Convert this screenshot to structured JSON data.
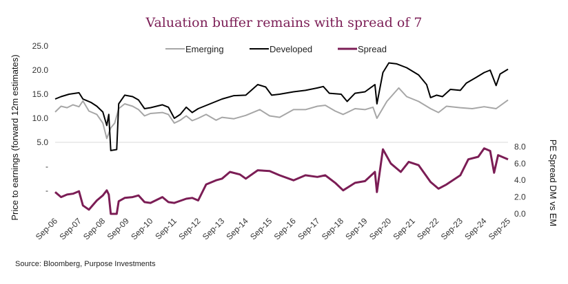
{
  "chart_data": {
    "type": "line",
    "title": "Valuation buffer remains with spread of 7",
    "source": "Source: Bloomberg, Purpose Investments",
    "ylabel_left": "Price to earnings (forward 12m estimates)",
    "ylabel_right": "PE Spread DM vs EM",
    "left_ticks": [
      "25.0",
      "20.0",
      "15.0",
      "10.0",
      "5.0",
      "-",
      "-"
    ],
    "left_tick_values": [
      25,
      20,
      15,
      10,
      5,
      0,
      -5
    ],
    "right_ticks": [
      "8.0",
      "6.0",
      "4.0",
      "2.0",
      "0.0"
    ],
    "right_tick_values": [
      8,
      6,
      4,
      2,
      0
    ],
    "x_ticks": [
      "Sep-06",
      "Sep-07",
      "Sep-08",
      "Sep-09",
      "Sep-10",
      "Sep-11",
      "Sep-12",
      "Sep-13",
      "Sep-14",
      "Sep-15",
      "Sep-16",
      "Sep-17",
      "Sep-18",
      "Sep-19",
      "Sep-20",
      "Sep-21",
      "Sep-22",
      "Sep-23",
      "Sep-24",
      "Sep-25"
    ],
    "xlim": [
      "2006-09",
      "2025-09"
    ],
    "ylim_left": [
      -10,
      25
    ],
    "ylim_right": [
      0,
      8
    ],
    "grid": "single horizontal line at 5.0",
    "legend_position": "top",
    "colors": {
      "Emerging": "#a6a6a6",
      "Developed": "#000000",
      "Spread": "#7b1d55"
    },
    "series": [
      {
        "name": "Emerging",
        "axis": "left",
        "points": [
          [
            "2006-09",
            11.3
          ],
          [
            "2006-12",
            12.5
          ],
          [
            "2007-03",
            12.2
          ],
          [
            "2007-06",
            12.8
          ],
          [
            "2007-09",
            12.4
          ],
          [
            "2007-11",
            13.6
          ],
          [
            "2008-02",
            11.5
          ],
          [
            "2008-06",
            10.8
          ],
          [
            "2008-09",
            9
          ],
          [
            "2008-11",
            5.8
          ],
          [
            "2009-01",
            8
          ],
          [
            "2009-03",
            9
          ],
          [
            "2009-05",
            12
          ],
          [
            "2009-08",
            13
          ],
          [
            "2009-12",
            12.5
          ],
          [
            "2010-03",
            11.8
          ],
          [
            "2010-06",
            10.5
          ],
          [
            "2010-09",
            11
          ],
          [
            "2011-03",
            11.2
          ],
          [
            "2011-06",
            10.8
          ],
          [
            "2011-09",
            9
          ],
          [
            "2011-12",
            9.6
          ],
          [
            "2012-03",
            10.5
          ],
          [
            "2012-06",
            9.5
          ],
          [
            "2012-09",
            10
          ],
          [
            "2013-01",
            10.8
          ],
          [
            "2013-06",
            9.6
          ],
          [
            "2013-09",
            10.2
          ],
          [
            "2014-03",
            9.9
          ],
          [
            "2014-09",
            10.6
          ],
          [
            "2015-04",
            11.8
          ],
          [
            "2015-09",
            10.5
          ],
          [
            "2016-02",
            10.2
          ],
          [
            "2016-09",
            11.8
          ],
          [
            "2017-03",
            11.8
          ],
          [
            "2017-09",
            12.5
          ],
          [
            "2018-01",
            12.7
          ],
          [
            "2018-06",
            11.5
          ],
          [
            "2018-10",
            10.8
          ],
          [
            "2019-04",
            12
          ],
          [
            "2019-09",
            11.8
          ],
          [
            "2020-01",
            12.3
          ],
          [
            "2020-03",
            10
          ],
          [
            "2020-08",
            13.5
          ],
          [
            "2021-02",
            16.3
          ],
          [
            "2021-06",
            14.5
          ],
          [
            "2021-12",
            13.5
          ],
          [
            "2022-06",
            12
          ],
          [
            "2022-10",
            11.2
          ],
          [
            "2023-02",
            12.5
          ],
          [
            "2023-09",
            12.2
          ],
          [
            "2024-03",
            12
          ],
          [
            "2024-09",
            12.4
          ],
          [
            "2025-03",
            12
          ],
          [
            "2025-09",
            13.8
          ]
        ]
      },
      {
        "name": "Developed",
        "axis": "left",
        "points": [
          [
            "2006-09",
            14
          ],
          [
            "2006-12",
            14.5
          ],
          [
            "2007-04",
            15
          ],
          [
            "2007-09",
            15.3
          ],
          [
            "2007-11",
            14
          ],
          [
            "2008-03",
            13.3
          ],
          [
            "2008-06",
            12.5
          ],
          [
            "2008-09",
            11.3
          ],
          [
            "2008-11",
            8.5
          ],
          [
            "2008-12",
            10.8
          ],
          [
            "2009-01",
            3.3
          ],
          [
            "2009-04",
            3.5
          ],
          [
            "2009-05",
            13
          ],
          [
            "2009-08",
            14.8
          ],
          [
            "2009-12",
            14.5
          ],
          [
            "2010-03",
            13.8
          ],
          [
            "2010-06",
            12
          ],
          [
            "2010-09",
            12.2
          ],
          [
            "2011-03",
            12.8
          ],
          [
            "2011-06",
            12.3
          ],
          [
            "2011-09",
            10
          ],
          [
            "2011-12",
            10.8
          ],
          [
            "2012-03",
            12.3
          ],
          [
            "2012-06",
            11.2
          ],
          [
            "2012-09",
            12
          ],
          [
            "2013-03",
            13
          ],
          [
            "2013-09",
            14
          ],
          [
            "2014-03",
            14.7
          ],
          [
            "2014-09",
            14.8
          ],
          [
            "2015-03",
            17
          ],
          [
            "2015-07",
            16.5
          ],
          [
            "2015-10",
            14.8
          ],
          [
            "2016-02",
            15
          ],
          [
            "2016-09",
            15.5
          ],
          [
            "2017-03",
            15.8
          ],
          [
            "2017-09",
            16.3
          ],
          [
            "2017-12",
            16.6
          ],
          [
            "2018-03",
            15.2
          ],
          [
            "2018-09",
            15
          ],
          [
            "2018-12",
            13.5
          ],
          [
            "2019-04",
            15.2
          ],
          [
            "2019-09",
            15.5
          ],
          [
            "2020-02",
            17
          ],
          [
            "2020-03",
            13
          ],
          [
            "2020-06",
            19.5
          ],
          [
            "2020-09",
            21.5
          ],
          [
            "2021-01",
            21.3
          ],
          [
            "2021-06",
            20.5
          ],
          [
            "2021-12",
            19
          ],
          [
            "2022-04",
            17
          ],
          [
            "2022-06",
            14.3
          ],
          [
            "2022-09",
            14.8
          ],
          [
            "2022-12",
            14.5
          ],
          [
            "2023-04",
            16
          ],
          [
            "2023-09",
            15.8
          ],
          [
            "2023-12",
            17.3
          ],
          [
            "2024-05",
            18.5
          ],
          [
            "2024-09",
            19.5
          ],
          [
            "2024-12",
            20
          ],
          [
            "2025-03",
            16.8
          ],
          [
            "2025-05",
            19.2
          ],
          [
            "2025-09",
            20.2
          ]
        ]
      },
      {
        "name": "Spread",
        "axis": "right",
        "points": [
          [
            "2006-09",
            2.6
          ],
          [
            "2006-12",
            2
          ],
          [
            "2007-03",
            2.3
          ],
          [
            "2007-06",
            2.4
          ],
          [
            "2007-09",
            2.7
          ],
          [
            "2007-11",
            1
          ],
          [
            "2008-02",
            0.5
          ],
          [
            "2008-06",
            1.6
          ],
          [
            "2008-09",
            2.2
          ],
          [
            "2008-11",
            2.8
          ],
          [
            "2008-12",
            2.3
          ],
          [
            "2009-01",
            0
          ],
          [
            "2009-04",
            0
          ],
          [
            "2009-05",
            1.5
          ],
          [
            "2009-08",
            1.9
          ],
          [
            "2009-12",
            2
          ],
          [
            "2010-03",
            2.2
          ],
          [
            "2010-06",
            1.4
          ],
          [
            "2010-09",
            1.3
          ],
          [
            "2011-03",
            2
          ],
          [
            "2011-06",
            1.4
          ],
          [
            "2011-09",
            1.3
          ],
          [
            "2012-03",
            1.8
          ],
          [
            "2012-06",
            1.9
          ],
          [
            "2012-09",
            1.6
          ],
          [
            "2013-01",
            3.5
          ],
          [
            "2013-06",
            4
          ],
          [
            "2013-09",
            4.2
          ],
          [
            "2014-01",
            5
          ],
          [
            "2014-06",
            4.7
          ],
          [
            "2014-09",
            4.2
          ],
          [
            "2015-03",
            5.2
          ],
          [
            "2015-09",
            5.1
          ],
          [
            "2016-02",
            4.6
          ],
          [
            "2016-09",
            4
          ],
          [
            "2017-03",
            4.6
          ],
          [
            "2017-09",
            4.4
          ],
          [
            "2018-01",
            4.6
          ],
          [
            "2018-06",
            3.7
          ],
          [
            "2018-10",
            2.8
          ],
          [
            "2019-04",
            3.7
          ],
          [
            "2019-09",
            3.9
          ],
          [
            "2020-02",
            5
          ],
          [
            "2020-03",
            2.6
          ],
          [
            "2020-06",
            7.7
          ],
          [
            "2020-10",
            6
          ],
          [
            "2021-03",
            5
          ],
          [
            "2021-07",
            6.2
          ],
          [
            "2021-12",
            5.8
          ],
          [
            "2022-06",
            3.8
          ],
          [
            "2022-10",
            3
          ],
          [
            "2023-02",
            3.5
          ],
          [
            "2023-09",
            4.6
          ],
          [
            "2024-01",
            6.5
          ],
          [
            "2024-06",
            6.8
          ],
          [
            "2024-09",
            7.8
          ],
          [
            "2024-12",
            7.5
          ],
          [
            "2025-02",
            4.9
          ],
          [
            "2025-04",
            7
          ],
          [
            "2025-09",
            6.5
          ]
        ]
      }
    ]
  }
}
